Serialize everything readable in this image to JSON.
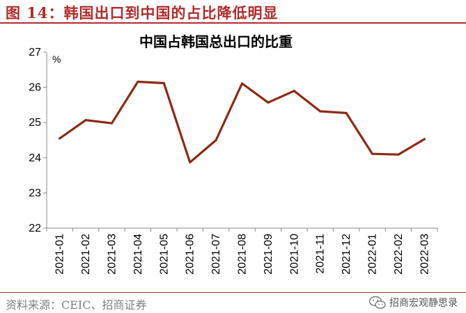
{
  "figure": {
    "title": "图 14：韩国出口到中国的占比降低明显",
    "source": "资料来源：CEIC、招商证券",
    "watermark": "招商宏观静思录",
    "accent_color": "#b22a2a"
  },
  "chart_data": {
    "type": "line",
    "title": "中国占韩国总出口的比重",
    "ylabel": "%",
    "xlabel": "",
    "ylim": [
      22,
      27
    ],
    "yticks": [
      22,
      23,
      24,
      25,
      26,
      27
    ],
    "grid": false,
    "legend": "none",
    "categories": [
      "2021-01",
      "2021-02",
      "2021-03",
      "2021-04",
      "2021-05",
      "2021-06",
      "2021-07",
      "2021-08",
      "2021-09",
      "2021-10",
      "2021-11",
      "2021-12",
      "2022-01",
      "2022-02",
      "2022-03"
    ],
    "series": [
      {
        "color": "#8b2a14",
        "values": [
          24.55,
          25.07,
          24.98,
          26.16,
          26.12,
          23.87,
          24.5,
          26.11,
          25.57,
          25.9,
          25.32,
          25.27,
          24.11,
          24.09,
          24.53
        ]
      }
    ]
  }
}
